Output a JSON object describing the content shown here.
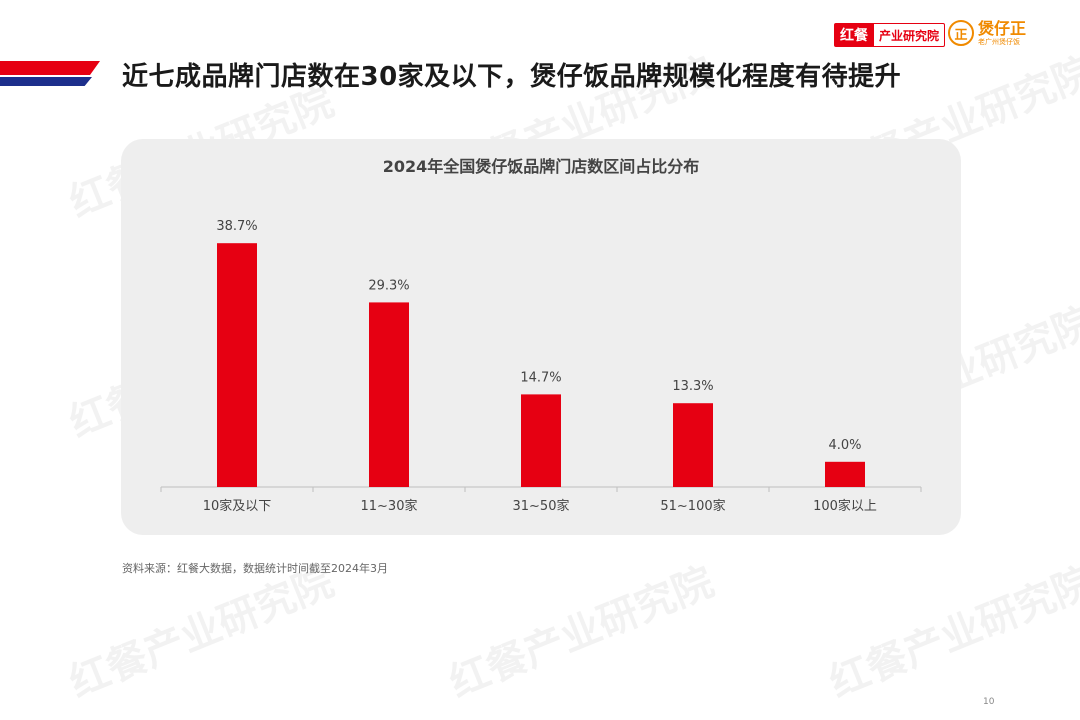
{
  "header": {
    "title": "近七成品牌门店数在30家及以下，煲仔饭品牌规模化程度有待提升",
    "logo_hongcan_mark": "红餐",
    "logo_hongcan_text": "产业研究院",
    "logo_partner_mark": "正",
    "logo_partner_name": "煲仔正",
    "logo_partner_sub": "老广州煲仔饭"
  },
  "watermark_text": "红餐产业研究院",
  "colors": {
    "bar": "#e60012",
    "panel": "#eeeeee",
    "accent_blue": "#1d2f8c"
  },
  "chart_data": {
    "type": "bar",
    "title": "2024年全国煲仔饭品牌门店数区间占比分布",
    "categories": [
      "10家及以下",
      "11~30家",
      "31~50家",
      "51~100家",
      "100家以上"
    ],
    "values": [
      38.7,
      29.3,
      14.7,
      13.3,
      4.0
    ],
    "value_labels": [
      "38.7%",
      "29.3%",
      "14.7%",
      "13.3%",
      "4.0%"
    ],
    "unit": "%",
    "ylim": [
      0,
      40
    ],
    "grid": false,
    "xlabel": "",
    "ylabel": ""
  },
  "footer": {
    "source": "资料来源：红餐大数据，数据统计时间截至2024年3月",
    "page_number": "10"
  }
}
